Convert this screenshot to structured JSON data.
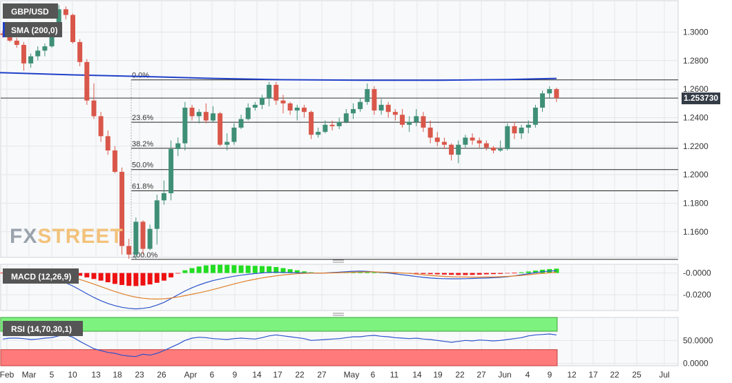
{
  "chart_data": [
    {
      "type": "candlestick",
      "title": "GBP/USD",
      "indicator": "SMA (200,0)",
      "brand": {
        "part1": "FX",
        "part2": "STREET"
      },
      "last_price_label": "1.253730",
      "last_price": 1.25373,
      "ylim": [
        1.142,
        1.322
      ],
      "y_ticks": [
        "1.3000",
        "1.2800",
        "1.2600",
        "1.2400",
        "1.2200",
        "1.2000",
        "1.1800",
        "1.1600"
      ],
      "x_ticks": [
        "Feb",
        "Mar",
        "5",
        "10",
        "13",
        "18",
        "23",
        "26",
        "Apr",
        "6",
        "9",
        "14",
        "17",
        "22",
        "27",
        "May",
        "6",
        "11",
        "14",
        "19",
        "22",
        "27",
        "Jun",
        "4",
        "9",
        "12",
        "17",
        "22",
        "25",
        "Jul"
      ],
      "fibonacci": [
        {
          "label": "0.0%",
          "value": 1.2665
        },
        {
          "label": "23.6%",
          "value": 1.2368
        },
        {
          "label": "38.2%",
          "value": 1.2185
        },
        {
          "label": "50.0%",
          "value": 1.2036
        },
        {
          "label": "61.8%",
          "value": 1.1887
        },
        {
          "label": "100.0%",
          "value": 1.1406
        }
      ],
      "ohlc": [
        [
          1.299,
          1.301,
          1.296,
          1.298
        ],
        [
          1.298,
          1.301,
          1.293,
          1.294
        ],
        [
          1.294,
          1.296,
          1.289,
          1.291
        ],
        [
          1.291,
          1.293,
          1.273,
          1.278
        ],
        [
          1.278,
          1.285,
          1.275,
          1.283
        ],
        [
          1.283,
          1.29,
          1.28,
          1.287
        ],
        [
          1.287,
          1.292,
          1.283,
          1.29
        ],
        [
          1.29,
          1.305,
          1.289,
          1.301
        ],
        [
          1.301,
          1.319,
          1.298,
          1.316
        ],
        [
          1.316,
          1.318,
          1.309,
          1.312
        ],
        [
          1.312,
          1.313,
          1.292,
          1.293
        ],
        [
          1.293,
          1.295,
          1.276,
          1.279
        ],
        [
          1.279,
          1.281,
          1.249,
          1.252
        ],
        [
          1.252,
          1.264,
          1.239,
          1.241
        ],
        [
          1.241,
          1.244,
          1.223,
          1.227
        ],
        [
          1.227,
          1.231,
          1.214,
          1.217
        ],
        [
          1.217,
          1.22,
          1.201,
          1.202
        ],
        [
          1.202,
          1.205,
          1.144,
          1.15
        ],
        [
          1.15,
          1.155,
          1.141,
          1.144
        ],
        [
          1.144,
          1.17,
          1.141,
          1.167
        ],
        [
          1.167,
          1.168,
          1.144,
          1.148
        ],
        [
          1.148,
          1.165,
          1.147,
          1.162
        ],
        [
          1.162,
          1.186,
          1.151,
          1.182
        ],
        [
          1.182,
          1.196,
          1.179,
          1.187
        ],
        [
          1.187,
          1.224,
          1.182,
          1.218
        ],
        [
          1.218,
          1.226,
          1.213,
          1.222
        ],
        [
          1.222,
          1.251,
          1.217,
          1.247
        ],
        [
          1.247,
          1.249,
          1.238,
          1.241
        ],
        [
          1.241,
          1.246,
          1.236,
          1.244
        ],
        [
          1.244,
          1.25,
          1.236,
          1.238
        ],
        [
          1.238,
          1.248,
          1.237,
          1.243
        ],
        [
          1.243,
          1.244,
          1.22,
          1.221
        ],
        [
          1.221,
          1.229,
          1.217,
          1.223
        ],
        [
          1.223,
          1.236,
          1.221,
          1.233
        ],
        [
          1.233,
          1.242,
          1.232,
          1.239
        ],
        [
          1.239,
          1.25,
          1.238,
          1.247
        ],
        [
          1.247,
          1.251,
          1.245,
          1.249
        ],
        [
          1.249,
          1.256,
          1.246,
          1.254
        ],
        [
          1.254,
          1.265,
          1.248,
          1.263
        ],
        [
          1.263,
          1.265,
          1.249,
          1.252
        ],
        [
          1.252,
          1.256,
          1.243,
          1.25
        ],
        [
          1.25,
          1.251,
          1.242,
          1.245
        ],
        [
          1.245,
          1.249,
          1.238,
          1.247
        ],
        [
          1.247,
          1.249,
          1.24,
          1.244
        ],
        [
          1.244,
          1.245,
          1.225,
          1.228
        ],
        [
          1.228,
          1.233,
          1.226,
          1.23
        ],
        [
          1.23,
          1.238,
          1.229,
          1.235
        ],
        [
          1.235,
          1.238,
          1.231,
          1.234
        ],
        [
          1.234,
          1.24,
          1.232,
          1.237
        ],
        [
          1.237,
          1.246,
          1.236,
          1.243
        ],
        [
          1.243,
          1.25,
          1.239,
          1.246
        ],
        [
          1.246,
          1.254,
          1.244,
          1.251
        ],
        [
          1.251,
          1.264,
          1.249,
          1.26
        ],
        [
          1.26,
          1.262,
          1.242,
          1.245
        ],
        [
          1.245,
          1.253,
          1.242,
          1.249
        ],
        [
          1.249,
          1.251,
          1.24,
          1.244
        ],
        [
          1.244,
          1.246,
          1.238,
          1.242
        ],
        [
          1.242,
          1.246,
          1.233,
          1.235
        ],
        [
          1.235,
          1.241,
          1.23,
          1.237
        ],
        [
          1.237,
          1.246,
          1.234,
          1.241
        ],
        [
          1.241,
          1.244,
          1.23,
          1.233
        ],
        [
          1.233,
          1.238,
          1.222,
          1.226
        ],
        [
          1.226,
          1.23,
          1.22,
          1.223
        ],
        [
          1.223,
          1.226,
          1.218,
          1.221
        ],
        [
          1.221,
          1.222,
          1.21,
          1.214
        ],
        [
          1.214,
          1.224,
          1.208,
          1.221
        ],
        [
          1.221,
          1.228,
          1.219,
          1.226
        ],
        [
          1.226,
          1.229,
          1.221,
          1.224
        ],
        [
          1.224,
          1.226,
          1.219,
          1.222
        ],
        [
          1.222,
          1.224,
          1.217,
          1.219
        ],
        [
          1.219,
          1.22,
          1.215,
          1.217
        ],
        [
          1.217,
          1.224,
          1.216,
          1.218
        ],
        [
          1.218,
          1.236,
          1.217,
          1.234
        ],
        [
          1.234,
          1.237,
          1.225,
          1.229
        ],
        [
          1.229,
          1.235,
          1.225,
          1.233
        ],
        [
          1.233,
          1.238,
          1.229,
          1.235
        ],
        [
          1.235,
          1.249,
          1.233,
          1.247
        ],
        [
          1.247,
          1.259,
          1.244,
          1.257
        ],
        [
          1.257,
          1.262,
          1.254,
          1.26
        ],
        [
          1.26,
          1.261,
          1.251,
          1.2537
        ]
      ],
      "sma": [
        [
          0,
          1.2715
        ],
        [
          10,
          1.27
        ],
        [
          20,
          1.2688
        ],
        [
          30,
          1.2675
        ],
        [
          40,
          1.2666
        ],
        [
          52,
          1.2662
        ],
        [
          62,
          1.2662
        ],
        [
          72,
          1.2667
        ],
        [
          79,
          1.2675
        ]
      ]
    },
    {
      "type": "bar+line",
      "title": "MACD (12,26,9)",
      "ylim": [
        -0.0345,
        0.008
      ],
      "y_ticks": [
        "-0.0000",
        "-0.0200"
      ],
      "histogram": [
        0.0,
        0.0,
        0.0,
        0.0,
        0.0,
        0.0,
        0.0,
        0.0,
        -0.0002,
        -0.0006,
        -0.0012,
        -0.0025,
        -0.004,
        -0.0055,
        -0.007,
        -0.0085,
        -0.01,
        -0.011,
        -0.0118,
        -0.012,
        -0.0115,
        -0.0105,
        -0.009,
        -0.007,
        -0.004,
        -0.0005,
        0.0025,
        0.0045,
        0.006,
        0.007,
        0.0075,
        0.0076,
        0.0075,
        0.0072,
        0.007,
        0.0068,
        0.0066,
        0.0064,
        0.0062,
        0.0055,
        0.0045,
        0.0035,
        0.0025,
        0.0015,
        0.0007,
        0.0002,
        0.0,
        0.0002,
        0.0004,
        0.0006,
        0.0008,
        0.001,
        0.0012,
        0.001,
        0.0007,
        0.0004,
        0.0,
        -0.0002,
        -0.0004,
        -0.0006,
        -0.0008,
        -0.001,
        -0.0012,
        -0.0014,
        -0.0016,
        -0.0018,
        -0.0018,
        -0.0017,
        -0.0015,
        -0.0012,
        -0.001,
        -0.0008,
        -0.0004,
        0.0,
        0.0007,
        0.0014,
        0.0022,
        0.003,
        0.0036,
        0.004
      ],
      "macd": [
        -0.0002,
        -0.0005,
        -0.0008,
        -0.0012,
        -0.0015,
        -0.002,
        -0.003,
        -0.0045,
        -0.0065,
        -0.009,
        -0.012,
        -0.0155,
        -0.019,
        -0.0225,
        -0.0255,
        -0.028,
        -0.03,
        -0.0315,
        -0.0325,
        -0.033,
        -0.0325,
        -0.0315,
        -0.0295,
        -0.027,
        -0.0235,
        -0.02,
        -0.0165,
        -0.0135,
        -0.011,
        -0.0088,
        -0.007,
        -0.0055,
        -0.0042,
        -0.003,
        -0.002,
        -0.0012,
        -0.0005,
        0.0001,
        0.0006,
        0.0008,
        0.0006,
        0.0004,
        0.0002,
        0.0001,
        0.0,
        -0.0001,
        0.0001,
        0.0004,
        0.0008,
        0.0012,
        0.0016,
        0.0018,
        0.0015,
        0.001,
        0.0005,
        0.0,
        -0.0008,
        -0.0016,
        -0.0024,
        -0.0032,
        -0.004,
        -0.0046,
        -0.005,
        -0.0052,
        -0.0053,
        -0.0053,
        -0.0052,
        -0.005,
        -0.0048,
        -0.0046,
        -0.0043,
        -0.004,
        -0.0034,
        -0.0026,
        -0.0016,
        -0.0006,
        0.0004,
        0.0012,
        0.0018,
        0.0022
      ],
      "signal": [
        0.0001,
        0.0,
        -0.0001,
        -0.0002,
        -0.0003,
        -0.0005,
        -0.0008,
        -0.0013,
        -0.002,
        -0.003,
        -0.0044,
        -0.006,
        -0.008,
        -0.0102,
        -0.0125,
        -0.0148,
        -0.017,
        -0.019,
        -0.0208,
        -0.0222,
        -0.0232,
        -0.0238,
        -0.024,
        -0.0237,
        -0.023,
        -0.022,
        -0.0208,
        -0.0195,
        -0.0182,
        -0.0168,
        -0.0152,
        -0.0135,
        -0.0118,
        -0.01,
        -0.0084,
        -0.007,
        -0.0057,
        -0.0045,
        -0.0035,
        -0.0026,
        -0.0018,
        -0.0012,
        -0.0007,
        -0.0003,
        -0.0001,
        0.0,
        0.0,
        0.0001,
        0.0003,
        0.0005,
        0.0007,
        0.0009,
        0.001,
        0.001,
        0.0008,
        0.0006,
        0.0003,
        0.0,
        -0.0004,
        -0.001,
        -0.0016,
        -0.0022,
        -0.0027,
        -0.0031,
        -0.0034,
        -0.0036,
        -0.0037,
        -0.0038,
        -0.0038,
        -0.0037,
        -0.0036,
        -0.0034,
        -0.0031,
        -0.0027,
        -0.0022,
        -0.0016,
        -0.0009,
        -0.0003,
        0.0002,
        0.0007
      ]
    },
    {
      "type": "line",
      "title": "RSI (14,70,30,1)",
      "ylim": [
        -5,
        100
      ],
      "y_ticks": [
        "50.0000",
        "0.0000"
      ],
      "bands": {
        "upper": 70,
        "lower": 30
      },
      "values": [
        53,
        55,
        55,
        54,
        52,
        53,
        55,
        56,
        60,
        62,
        57,
        48,
        40,
        32,
        28,
        24,
        22,
        18,
        16,
        15,
        20,
        18,
        22,
        28,
        35,
        42,
        50,
        55,
        57,
        56,
        54,
        53,
        52,
        54,
        55,
        54,
        53,
        56,
        60,
        62,
        60,
        58,
        56,
        54,
        50,
        51,
        52,
        53,
        54,
        56,
        58,
        58,
        60,
        61,
        59,
        58,
        56,
        55,
        54,
        55,
        53,
        52,
        50,
        48,
        46,
        48,
        50,
        49,
        51,
        50,
        49,
        50,
        52,
        54,
        56,
        60,
        62,
        63,
        64,
        62
      ]
    }
  ]
}
